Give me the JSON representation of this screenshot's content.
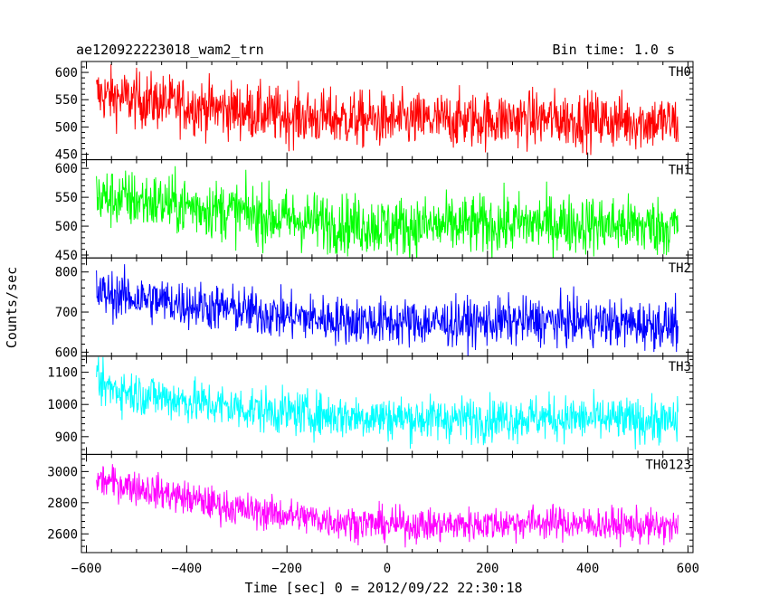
{
  "header": {
    "left_title": "ae120922223018_wam2_trn",
    "right_title": "Bin time: 1.0 s"
  },
  "chart_data": {
    "type": "line",
    "title": "ae120922223018_wam2_trn",
    "bin_time": "Bin time: 1.0 s",
    "xlabel": "Time [sec] 0 = 2012/09/22 22:30:18",
    "ylabel": "Counts/sec",
    "xlim": [
      -610,
      610
    ],
    "x_range": [
      -580,
      580
    ],
    "x_ticks": [
      -600,
      -400,
      -200,
      0,
      200,
      400,
      600
    ],
    "x_tick_labels": [
      "−600",
      "−400",
      "−200",
      "0",
      "200",
      "400",
      "600"
    ],
    "grid": false,
    "legend": "none",
    "panels": [
      {
        "name": "TH0",
        "color": "#ff0000",
        "ylim": [
          440,
          620
        ],
        "yticks": [
          450,
          500,
          550,
          600
        ],
        "ytick_labels": [
          "450",
          "500",
          "550",
          "600"
        ],
        "trend_x": [
          -580,
          -500,
          -400,
          -300,
          -200,
          -100,
          0,
          100,
          200,
          300,
          400,
          500,
          580
        ],
        "trend_y": [
          560,
          550,
          540,
          530,
          520,
          515,
          512,
          512,
          513,
          515,
          513,
          510,
          508
        ],
        "noise_sigma": 26
      },
      {
        "name": "TH1",
        "color": "#00ff00",
        "ylim": [
          445,
          615
        ],
        "yticks": [
          450,
          500,
          550,
          600
        ],
        "ytick_labels": [
          "450",
          "500",
          "550",
          "600"
        ],
        "trend_x": [
          -580,
          -500,
          -400,
          -300,
          -200,
          -100,
          0,
          100,
          200,
          300,
          400,
          500,
          580
        ],
        "trend_y": [
          550,
          545,
          535,
          525,
          512,
          505,
          500,
          500,
          502,
          505,
          503,
          500,
          500
        ],
        "noise_sigma": 26
      },
      {
        "name": "TH2",
        "color": "#0000ff",
        "ylim": [
          590,
          835
        ],
        "yticks": [
          600,
          700,
          800
        ],
        "ytick_labels": [
          "600",
          "700",
          "800"
        ],
        "trend_x": [
          -580,
          -500,
          -400,
          -300,
          -200,
          -100,
          0,
          100,
          200,
          300,
          400,
          500,
          580
        ],
        "trend_y": [
          748,
          735,
          720,
          705,
          690,
          680,
          675,
          673,
          675,
          678,
          675,
          670,
          668
        ],
        "noise_sigma": 30
      },
      {
        "name": "TH3",
        "color": "#00ffff",
        "ylim": [
          845,
          1150
        ],
        "yticks": [
          900,
          1000,
          1100
        ],
        "ytick_labels": [
          "900",
          "1000",
          "1100"
        ],
        "trend_x": [
          -580,
          -500,
          -400,
          -300,
          -200,
          -100,
          0,
          100,
          200,
          300,
          400,
          500,
          580
        ],
        "trend_y": [
          1060,
          1035,
          1010,
          990,
          975,
          965,
          960,
          955,
          955,
          960,
          955,
          950,
          945
        ],
        "noise_sigma": 35
      },
      {
        "name": "TH0123",
        "color": "#ff00ff",
        "ylim": [
          2480,
          3110
        ],
        "yticks": [
          2600,
          2800,
          3000
        ],
        "ytick_labels": [
          "2600",
          "2800",
          "3000"
        ],
        "trend_x": [
          -580,
          -500,
          -400,
          -300,
          -200,
          -100,
          0,
          100,
          200,
          300,
          400,
          500,
          580
        ],
        "trend_y": [
          2950,
          2900,
          2830,
          2760,
          2720,
          2680,
          2660,
          2655,
          2665,
          2675,
          2665,
          2650,
          2640
        ],
        "noise_sigma": 55
      }
    ]
  }
}
